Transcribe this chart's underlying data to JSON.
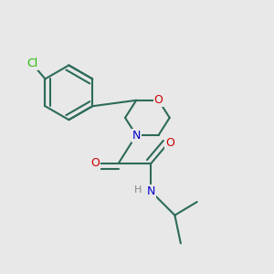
{
  "background_color": "#e8e8e8",
  "bond_color": "#2d6b5a",
  "bond_width": 1.5,
  "atom_colors": {
    "C": "#2d6b5a",
    "N": "#0000cc",
    "O": "#cc0000",
    "Cl": "#22bb00",
    "H": "#888888"
  },
  "font_size": 9,
  "figsize": [
    3.0,
    3.0
  ],
  "dpi": 100
}
